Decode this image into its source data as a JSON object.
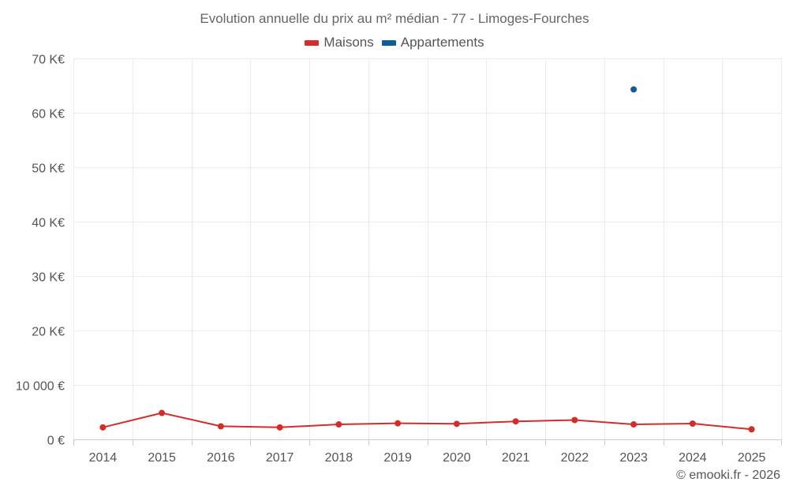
{
  "chart_data": {
    "type": "line",
    "title": "Evolution annuelle du prix au m² médian - 77 - Limoges-Fourches",
    "xlabel": "",
    "ylabel": "",
    "categories": [
      "2014",
      "2015",
      "2016",
      "2017",
      "2018",
      "2019",
      "2020",
      "2021",
      "2022",
      "2023",
      "2024",
      "2025"
    ],
    "ylim": [
      0,
      70000
    ],
    "yticks": [
      0,
      10000,
      20000,
      30000,
      40000,
      50000,
      60000,
      70000
    ],
    "ytick_labels": [
      "0 €",
      "10 000 €",
      "20 K€",
      "30 K€",
      "40 K€",
      "50 K€",
      "60 K€",
      "70 K€"
    ],
    "grid": true,
    "legend_position": "top-center",
    "series": [
      {
        "name": "Maisons",
        "color": "#d42b2b",
        "values": [
          2200,
          4850,
          2400,
          2200,
          2750,
          2950,
          2850,
          3300,
          3550,
          2750,
          2900,
          1850
        ]
      },
      {
        "name": "Appartements",
        "color": "#0f5f94",
        "values": [
          null,
          null,
          null,
          null,
          null,
          null,
          null,
          null,
          null,
          64300,
          null,
          null
        ]
      }
    ]
  },
  "credit": "© emooki.fr - 2026"
}
